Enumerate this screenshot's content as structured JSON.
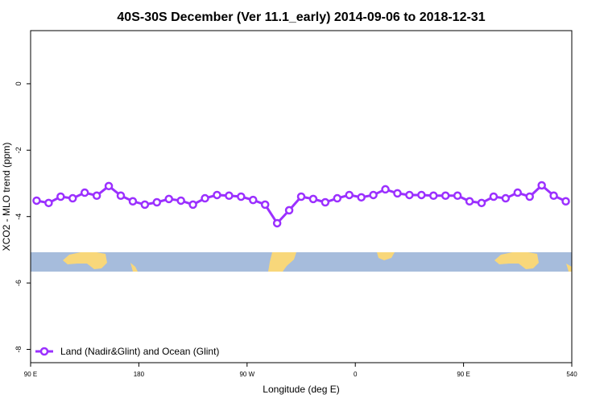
{
  "chart_data": {
    "type": "line",
    "title": "40S-30S December (Ver 11.1_early)   2014-09-06 to 2018-12-31",
    "x_label": "Longitude (deg E)",
    "y_label": "XCO2 - MLO trend (ppm)",
    "x": [
      95,
      105,
      115,
      125,
      135,
      145,
      155,
      165,
      175,
      185,
      195,
      205,
      215,
      225,
      235,
      245,
      255,
      265,
      275,
      285,
      295,
      305,
      315,
      325,
      335,
      345,
      355,
      365,
      375,
      385,
      395,
      405,
      415,
      425,
      435,
      445,
      455,
      465,
      475,
      485,
      495,
      505,
      515,
      525,
      535
    ],
    "series": [
      {
        "name": "Land (Nadir&Glint) and Ocean (Glint)",
        "color": "#9b30ff",
        "values": [
          -3.52,
          -3.59,
          -3.4,
          -3.45,
          -3.28,
          -3.37,
          -3.08,
          -3.37,
          -3.54,
          -3.64,
          -3.57,
          -3.47,
          -3.52,
          -3.64,
          -3.45,
          -3.35,
          -3.37,
          -3.4,
          -3.5,
          -3.64,
          -4.2,
          -3.81,
          -3.4,
          -3.47,
          -3.57,
          -3.45,
          -3.35,
          -3.42,
          -3.35,
          -3.18,
          -3.3,
          -3.35,
          -3.35,
          -3.37,
          -3.37,
          -3.37,
          -3.54,
          -3.59,
          -3.4,
          -3.45,
          -3.28,
          -3.4,
          -3.06,
          -3.37,
          -3.54
        ]
      }
    ],
    "xlim": [
      90,
      540
    ],
    "xticks": [
      {
        "value": 90,
        "label": "90 E"
      },
      180,
      {
        "value": 270,
        "label": "90 W"
      },
      {
        "value": 360,
        "label": "0"
      },
      {
        "value": 450,
        "label": "90 E"
      },
      540
    ],
    "ylim": [
      -8.4,
      1.6
    ],
    "yticks": [
      0,
      -2,
      -4,
      -6,
      -8
    ],
    "legend": "bottom-left"
  }
}
